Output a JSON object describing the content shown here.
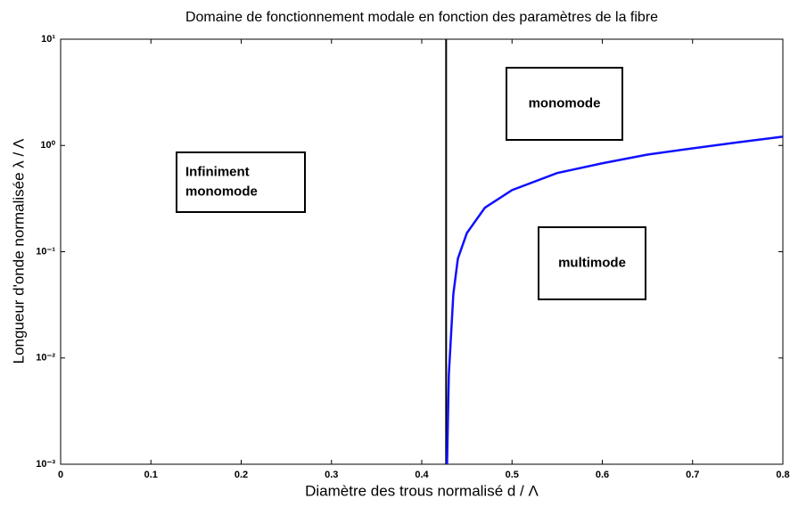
{
  "chart_data": {
    "type": "line",
    "title": "Domaine de fonctionnement modale en fonction des paramètres de la fibre",
    "x_label": "Diamètre des trous normalisé d / Λ",
    "y_label": "Longueur d'onde normalisée λ / Λ",
    "xlim": [
      0,
      0.8
    ],
    "xticks": [
      0,
      0.1,
      0.2,
      0.3,
      0.4,
      0.5,
      0.6,
      0.7,
      0.8
    ],
    "ylim": [
      0.001,
      10
    ],
    "yticks": [
      {
        "value": 0.001,
        "label": "10⁻³"
      },
      {
        "value": 0.01,
        "label": "10⁻²"
      },
      {
        "value": 0.1,
        "label": "10⁻¹"
      },
      {
        "value": 1,
        "label": "10⁰"
      },
      {
        "value": 10,
        "label": "10¹"
      }
    ],
    "y_log": true,
    "series": [
      {
        "color": "#000000",
        "x": [
          0.427,
          0.427
        ],
        "values": [
          0.001,
          10
        ]
      },
      {
        "color": "#1010ff",
        "x": [
          0.428,
          0.43,
          0.435,
          0.44,
          0.45,
          0.47,
          0.5,
          0.55,
          0.6,
          0.65,
          0.7,
          0.75,
          0.8
        ],
        "values": [
          0.001,
          0.007,
          0.04,
          0.086,
          0.15,
          0.26,
          0.38,
          0.55,
          0.68,
          0.82,
          0.94,
          1.07,
          1.21
        ]
      }
    ],
    "annotations": [
      [
        "Infiniment",
        "monomode"
      ],
      [
        "monomode"
      ],
      [
        "multimode"
      ]
    ]
  }
}
